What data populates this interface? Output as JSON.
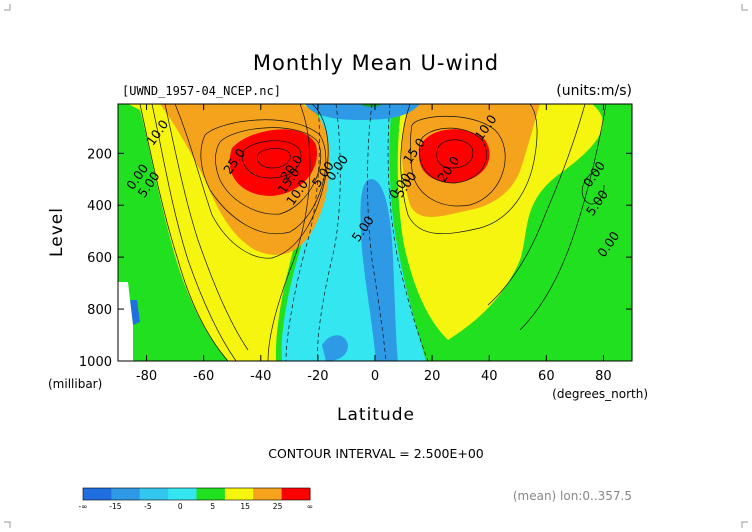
{
  "chart_data": {
    "type": "contour",
    "title": "Monthly Mean U-wind",
    "subtitle_left": "[UWND_1957-04_NCEP.nc]",
    "subtitle_right": "(units:m/s)",
    "xlabel": "Latitude",
    "xunit": "(degrees_north)",
    "ylabel": "Level",
    "yunit": "(millibar)",
    "x_ticks": [
      -80,
      -60,
      -40,
      -20,
      0,
      20,
      40,
      60,
      80
    ],
    "x_tick_labels": [
      "-80",
      "-60",
      "-40",
      "-20",
      "0",
      "20",
      "40",
      "60",
      "80"
    ],
    "xlim": [
      -90,
      90
    ],
    "y_ticks": [
      200,
      400,
      600,
      800,
      1000
    ],
    "y_tick_labels": [
      "200",
      "400",
      "600",
      "800",
      "1000"
    ],
    "ylim": [
      1000,
      10
    ],
    "y_reversed": true,
    "contour_interval": "CONTOUR INTERVAL = 2.500E+00",
    "footer_note": "(mean) lon:0..357.5",
    "jets": [
      {
        "lat": -30,
        "level": 180,
        "max": 32.5
      },
      {
        "lat": 27,
        "level": 180,
        "max": 32.5
      }
    ],
    "contour_labels": [
      {
        "text": "10.0",
        "lat": -75,
        "level": 130
      },
      {
        "text": "0.00",
        "lat": -82,
        "level": 300
      },
      {
        "text": "5.00",
        "lat": -78,
        "level": 330
      },
      {
        "text": "25.0",
        "lat": -48,
        "level": 240
      },
      {
        "text": "20.0",
        "lat": -28,
        "level": 265
      },
      {
        "text": "15.0",
        "lat": -29,
        "level": 315
      },
      {
        "text": "10.0",
        "lat": -26,
        "level": 360
      },
      {
        "text": "5.00",
        "lat": -17,
        "level": 290
      },
      {
        "text": "0.00",
        "lat": -12,
        "level": 265
      },
      {
        "text": "5.00",
        "lat": -3,
        "level": 500
      },
      {
        "text": "10.0",
        "lat": 40,
        "level": 110
      },
      {
        "text": "15.0",
        "lat": 15,
        "level": 200
      },
      {
        "text": "20.0",
        "lat": 27,
        "level": 270
      },
      {
        "text": "0.00",
        "lat": 10,
        "level": 335
      },
      {
        "text": "5.00",
        "lat": 12,
        "level": 330
      },
      {
        "text": "0.00",
        "lat": 78,
        "level": 290
      },
      {
        "text": "5.00",
        "lat": 79,
        "level": 400
      },
      {
        "text": "0.00",
        "lat": 83,
        "level": 560
      }
    ],
    "colorbar": {
      "labels": [
        "-∞",
        "-15",
        "-5",
        "0",
        "5",
        "15",
        "25",
        "∞"
      ],
      "colors": [
        "#1f6fe0",
        "#2e9ae6",
        "#33c6ee",
        "#33e6f0",
        "#20e020",
        "#f5f510",
        "#f5a31c",
        "#ff0000"
      ]
    },
    "colors": {
      "neg_strong": "#1f6fe0",
      "neg": "#33c6ee",
      "zero": "#33e6f0",
      "low_pos": "#20e020",
      "mid_pos": "#f5f510",
      "high_pos": "#f5a31c",
      "max_pos": "#ff0000"
    }
  }
}
